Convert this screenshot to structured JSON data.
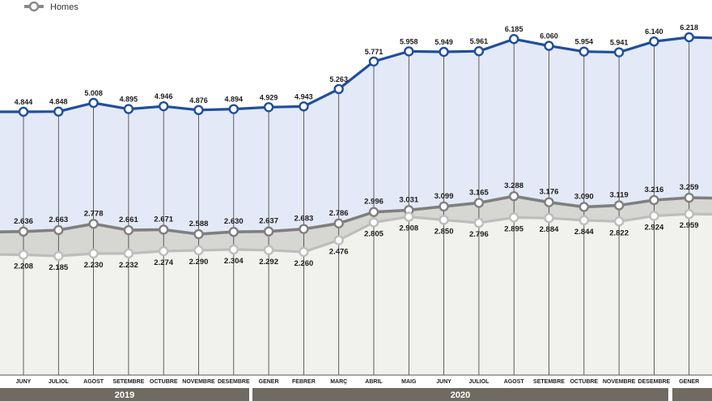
{
  "chart_data": {
    "type": "line",
    "legend": [
      {
        "label": "Homes",
        "color": "#8a8a8a"
      }
    ],
    "months": [
      "JUNY",
      "JULIOL",
      "AGOST",
      "SETEMBRE",
      "OCTUBRE",
      "NOVEMBRE",
      "DESEMBRE",
      "GENER",
      "FEBRER",
      "MARÇ",
      "ABRIL",
      "MAIG",
      "JUNY",
      "JULIOL",
      "AGOST",
      "SETEMBRE",
      "OCTUBRE",
      "NOVEMBRE",
      "DESEMBRE",
      "GENER"
    ],
    "tick_labels": [
      "JUNY",
      "JULIOL",
      "AGOST",
      "SETEMBRE",
      "OCTUBRE",
      "NOVEMBRE",
      "DESEMBRE",
      "GENER",
      "FEBRER",
      "MARÇ",
      "ABRIL",
      "MAIG",
      "JUNY",
      "JULIOL",
      "AGOST",
      "SETEMBRE",
      "OCTUBRE",
      "NOVEMBRE",
      "DESEMBRE",
      "GENER"
    ],
    "years": [
      {
        "label": "2019",
        "from": 0,
        "to": 6
      },
      {
        "label": "2020",
        "from": 7,
        "to": 18
      },
      {
        "label": "",
        "from": 19,
        "to": 20
      }
    ],
    "series": [
      {
        "color": "#1f4e9c",
        "fill": "#e4e9f7",
        "values": [
          4844,
          4848,
          5008,
          4895,
          4946,
          4876,
          4894,
          4929,
          4943,
          5263,
          5771,
          5958,
          5949,
          5961,
          6185,
          6060,
          5954,
          5941,
          6140,
          6218
        ],
        "labels": [
          "4.844",
          "4.848",
          "5.008",
          "4.895",
          "4.946",
          "4.876",
          "4.894",
          "4.929",
          "4.943",
          "5.263",
          "5.771",
          "5.958",
          "5.949",
          "5.961",
          "6.185",
          "6.060",
          "5.954",
          "5.941",
          "6.140",
          "6.218"
        ]
      },
      {
        "color": "#7f7f7f",
        "values": [
          2636,
          2663,
          2778,
          2661,
          2671,
          2588,
          2630,
          2637,
          2683,
          2786,
          2996,
          3031,
          3099,
          3165,
          3288,
          3176,
          3090,
          3119,
          3216,
          3259
        ],
        "labels": [
          "2.636",
          "2.663",
          "2.778",
          "2.661",
          "2.671",
          "2.588",
          "2.630",
          "2.637",
          "2.683",
          "2.786",
          "2.996",
          "3.031",
          "3.099",
          "3.165",
          "3.288",
          "3.176",
          "3.090",
          "3.119",
          "3.216",
          "3.259"
        ]
      },
      {
        "name": "Homes",
        "color": "#bdbdbd",
        "values": [
          2208,
          2185,
          2230,
          2232,
          2274,
          2290,
          2304,
          2292,
          2260,
          2476,
          2805,
          2908,
          2850,
          2796,
          2895,
          2884,
          2844,
          2822,
          2924,
          2959
        ],
        "labels": [
          "2.208",
          "2.185",
          "2.230",
          "2.232",
          "2.274",
          "2.290",
          "2.304",
          "2.292",
          "2.260",
          "2.476",
          "2.805",
          "2.908",
          "2.850",
          "2.796",
          "2.895",
          "2.884",
          "2.844",
          "2.822",
          "2.924",
          "2.959"
        ]
      }
    ]
  }
}
